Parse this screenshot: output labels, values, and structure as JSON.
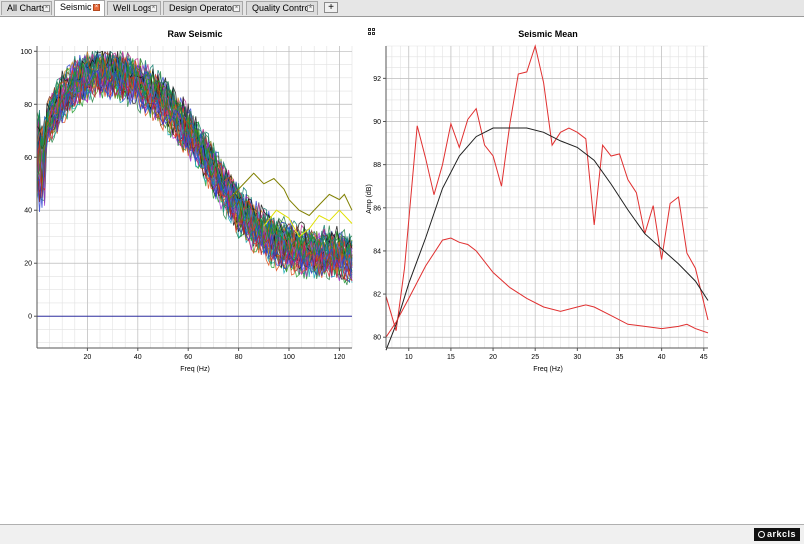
{
  "tabs": [
    {
      "label": "All Charts",
      "active": false
    },
    {
      "label": "Seismic",
      "active": true
    },
    {
      "label": "Well Logs",
      "active": false
    },
    {
      "label": "Design Operators",
      "active": false
    },
    {
      "label": "Quality Control",
      "active": false
    }
  ],
  "add_tab_label": "+",
  "tab_close_glyph": "×",
  "footer": {
    "logo_text": "arkcls"
  },
  "icons": {
    "expand": "expand-grid-icon",
    "close": "close-icon",
    "add": "plus-icon"
  },
  "chart_data": [
    {
      "type": "line",
      "title": "Raw Seismic",
      "xlabel": "Freq (Hz)",
      "ylabel": "",
      "xlim": [
        0,
        125
      ],
      "ylim": [
        -12,
        102
      ],
      "xticks": [
        20,
        40,
        60,
        80,
        100,
        120
      ],
      "yticks": [
        0,
        20,
        40,
        60,
        80,
        100
      ],
      "grid": true,
      "trace_count": 48,
      "envelope": {
        "x": [
          0,
          5,
          10,
          15,
          20,
          25,
          30,
          35,
          40,
          45,
          50,
          55,
          60,
          65,
          70,
          75,
          80,
          85,
          90,
          95,
          100,
          105,
          110,
          115,
          120,
          125
        ],
        "y": [
          70,
          74,
          82,
          88,
          91,
          92,
          91,
          90,
          88,
          85,
          81,
          76,
          70,
          63,
          55,
          47,
          40,
          35,
          31,
          28,
          26,
          25,
          24,
          24,
          23,
          22
        ]
      },
      "highlighted_series": [
        {
          "color": "#808000",
          "x": [
            76,
            80,
            84,
            86,
            88,
            90,
            94,
            98,
            100,
            104,
            108,
            112,
            116,
            120,
            122,
            125
          ],
          "y": [
            44,
            48,
            52,
            54,
            52,
            50,
            52,
            48,
            44,
            40,
            38,
            42,
            46,
            44,
            46,
            40
          ]
        },
        {
          "color": "#e0e000",
          "x": [
            90,
            95,
            100,
            104,
            108,
            112,
            116,
            120,
            125
          ],
          "y": [
            34,
            40,
            37,
            30,
            33,
            38,
            36,
            40,
            35
          ]
        }
      ],
      "zero_line": {
        "y": 0,
        "color": "#3030a0"
      }
    },
    {
      "type": "line",
      "title": "Seismic Mean",
      "xlabel": "Freq (Hz)",
      "ylabel": "Amp (dB)",
      "xlim": [
        7.3,
        45.5
      ],
      "ylim": [
        79.5,
        93.5
      ],
      "xticks": [
        10,
        15,
        20,
        25,
        30,
        35,
        40,
        45
      ],
      "yticks": [
        80,
        82,
        84,
        86,
        88,
        90,
        92
      ],
      "grid": true,
      "series": [
        {
          "color": "#e03030",
          "x": [
            7.3,
            8.5,
            9.5,
            11,
            12,
            13,
            14,
            15,
            16,
            17,
            18,
            19,
            20,
            21,
            22,
            23,
            24,
            25,
            26,
            27,
            28,
            29,
            30,
            31,
            32,
            33,
            34,
            35,
            36,
            37,
            38,
            39,
            40,
            41,
            42,
            43,
            44,
            45.5
          ],
          "y": [
            81.9,
            80.3,
            83.2,
            89.8,
            88.3,
            86.6,
            88.0,
            89.9,
            88.8,
            90.1,
            90.6,
            88.9,
            88.4,
            87.0,
            89.9,
            92.2,
            92.3,
            93.5,
            91.8,
            88.9,
            89.5,
            89.7,
            89.5,
            89.2,
            85.2,
            88.9,
            88.4,
            88.5,
            87.3,
            86.7,
            84.8,
            86.1,
            83.6,
            86.2,
            86.5,
            83.9,
            83.2,
            80.8
          ]
        },
        {
          "color": "#202020",
          "x": [
            7.3,
            8.5,
            10,
            12,
            14,
            16,
            18,
            20,
            22,
            24,
            26,
            28,
            30,
            32,
            34,
            36,
            38,
            40,
            42,
            44,
            45.5
          ],
          "y": [
            79.4,
            80.6,
            82.5,
            84.6,
            86.9,
            88.4,
            89.3,
            89.7,
            89.7,
            89.7,
            89.5,
            89.1,
            88.8,
            88.2,
            87.1,
            85.9,
            84.8,
            84.1,
            83.4,
            82.6,
            81.7
          ]
        },
        {
          "color": "#e03030",
          "x": [
            7.3,
            8.5,
            10,
            12,
            14,
            15,
            16,
            17,
            18,
            20,
            22,
            24,
            26,
            28,
            30,
            31,
            32,
            34,
            36,
            38,
            40,
            42,
            43,
            44,
            45.5
          ],
          "y": [
            80.0,
            80.7,
            81.8,
            83.3,
            84.5,
            84.6,
            84.4,
            84.3,
            84.0,
            83.0,
            82.3,
            81.8,
            81.4,
            81.2,
            81.4,
            81.5,
            81.4,
            81.0,
            80.6,
            80.5,
            80.4,
            80.5,
            80.6,
            80.4,
            80.2
          ]
        }
      ]
    }
  ]
}
